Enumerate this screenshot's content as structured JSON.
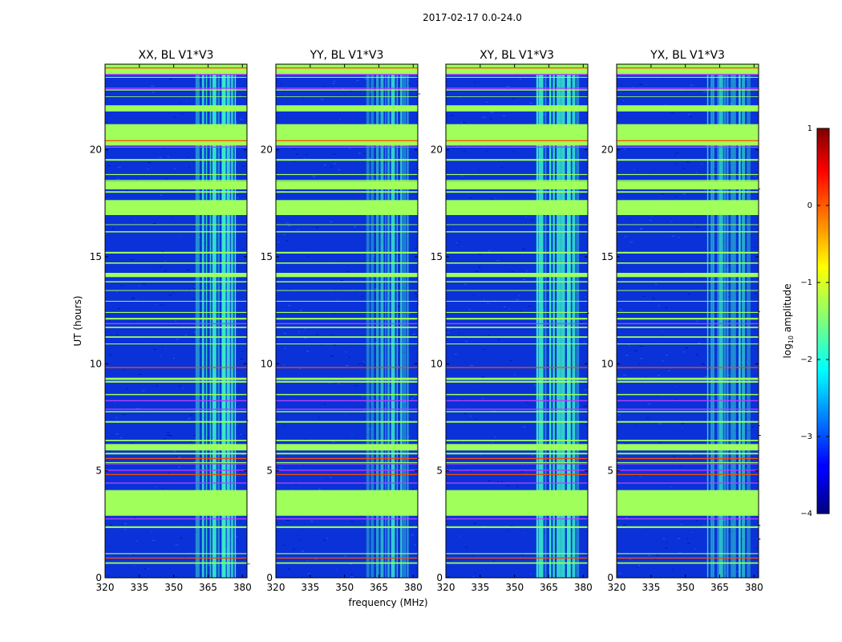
{
  "chart_data": {
    "type": "heatmap",
    "title": "2017-02-17 0.0-24.0",
    "xlabel": "frequency (MHz)",
    "ylabel": "UT (hours)",
    "xlim": [
      320,
      382
    ],
    "ylim": [
      0,
      24
    ],
    "x_ticks": [
      320,
      335,
      350,
      365,
      380
    ],
    "x_tick_labels": [
      "320",
      "335",
      "350",
      "365",
      "380"
    ],
    "y_ticks": [
      0,
      5,
      10,
      15,
      20
    ],
    "y_tick_labels": [
      "0",
      "5",
      "10",
      "15",
      "20"
    ],
    "panels": [
      {
        "title": "XX, BL V1*V3",
        "rfi_band_mhz": [
          359.5,
          378
        ]
      },
      {
        "title": "YY, BL V1*V3",
        "rfi_band_mhz": [
          359.5,
          378
        ]
      },
      {
        "title": "XY, BL V1*V3",
        "rfi_band_mhz": [
          359.5,
          378
        ]
      },
      {
        "title": "YX, BL V1*V3",
        "rfi_band_mhz": [
          359.5,
          378
        ]
      }
    ],
    "flagged_hour_ranges": [
      [
        2.9,
        4.1
      ],
      [
        5.95,
        6.25
      ],
      [
        9.25,
        9.35
      ],
      [
        14.05,
        14.25
      ],
      [
        16.95,
        17.65
      ],
      [
        18.15,
        18.55
      ],
      [
        20.2,
        21.2
      ],
      [
        21.85,
        22.05
      ],
      [
        23.5,
        24.0
      ]
    ],
    "colorbar": {
      "label": "log",
      "label_sub": "10",
      "label_rest": " amplitude",
      "range": [
        -4,
        1
      ],
      "ticks": [
        1,
        0,
        -1,
        -2,
        -3,
        -4
      ],
      "tick_labels": [
        "1",
        "0",
        "−1",
        "−2",
        "−3",
        "−4"
      ],
      "colormap": "jet"
    }
  },
  "colors": {
    "background_low": "#0a32d8",
    "flagged": "#a0ff5a",
    "rfi": "#3cffc8",
    "hot_line": "#ff4a00"
  }
}
